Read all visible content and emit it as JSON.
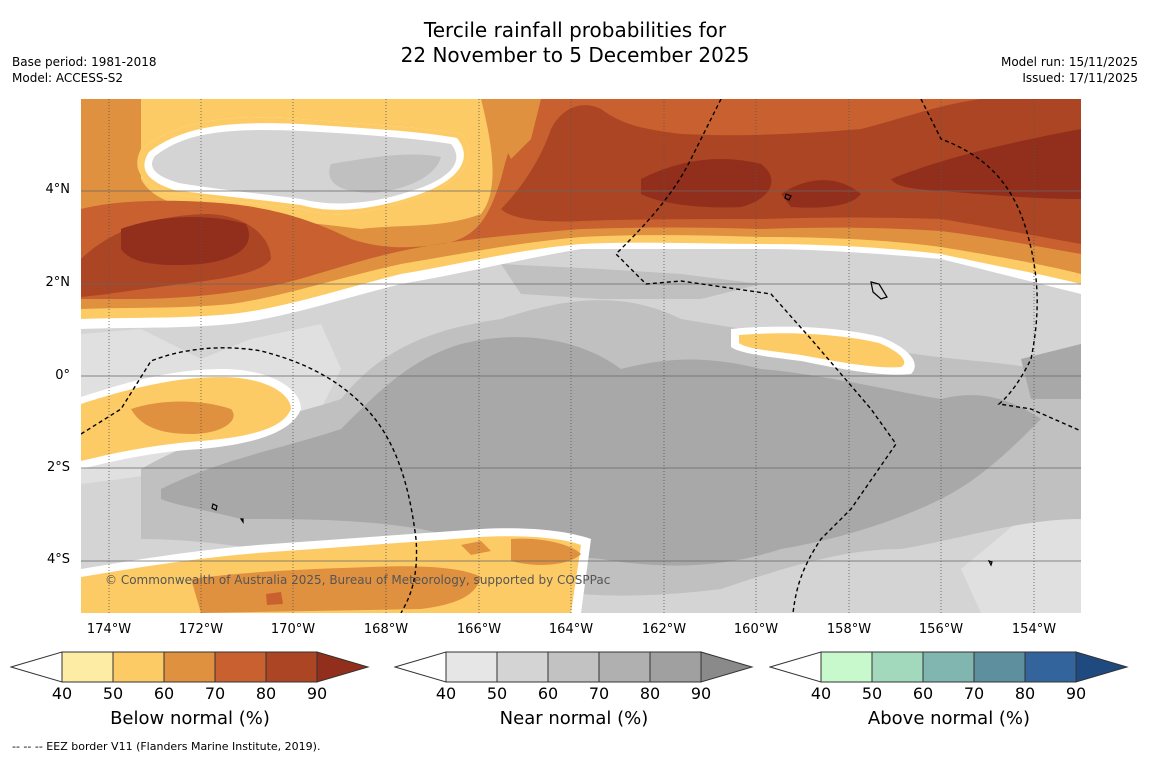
{
  "title": {
    "line1": "Tercile rainfall probabilities for",
    "line2": "22 November to 5 December 2025"
  },
  "meta_left": {
    "base_period": "Base period: 1981-2018",
    "model": "Model: ACCESS-S2"
  },
  "meta_right": {
    "model_run": "Model run: 15/11/2025",
    "issued": "Issued: 17/11/2025"
  },
  "map": {
    "copyright": "© Commonwealth of Australia 2025, Bureau of Meteorology, supported by COSPPac",
    "x_ticks": [
      "174°W",
      "172°W",
      "170°W",
      "168°W",
      "166°W",
      "164°W",
      "162°W",
      "160°W",
      "158°W",
      "156°W",
      "154°W"
    ],
    "y_ticks": [
      "4°N",
      "2°N",
      "0°",
      "2°S",
      "4°S"
    ],
    "lon_range": [
      -174.6,
      -152.9
    ],
    "lat_range": [
      -5.0,
      6.0
    ]
  },
  "colorbars": [
    {
      "title": "Below normal (%)",
      "labels": [
        "40",
        "50",
        "60",
        "70",
        "80",
        "90"
      ],
      "colors": [
        "#ffffff",
        "#fdeca3",
        "#fdcb66",
        "#e0913f",
        "#c86030",
        "#ac4523",
        "#922f1c"
      ]
    },
    {
      "title": "Near normal (%)",
      "labels": [
        "40",
        "50",
        "60",
        "70",
        "80",
        "90"
      ],
      "colors": [
        "#ffffff",
        "#e6e6e6",
        "#d4d4d4",
        "#c2c2c2",
        "#b0b0b0",
        "#a0a0a0",
        "#8a8a8a"
      ]
    },
    {
      "title": "Above normal (%)",
      "labels": [
        "40",
        "50",
        "60",
        "70",
        "80",
        "90"
      ],
      "colors": [
        "#ffffff",
        "#c8f9cc",
        "#a2d8bc",
        "#80b5b0",
        "#5d8f9f",
        "#33649c",
        "#1f4a7f"
      ]
    }
  ],
  "footer": "--  --  -- EEZ border V11 (Flanders Marine Institute, 2019)."
}
